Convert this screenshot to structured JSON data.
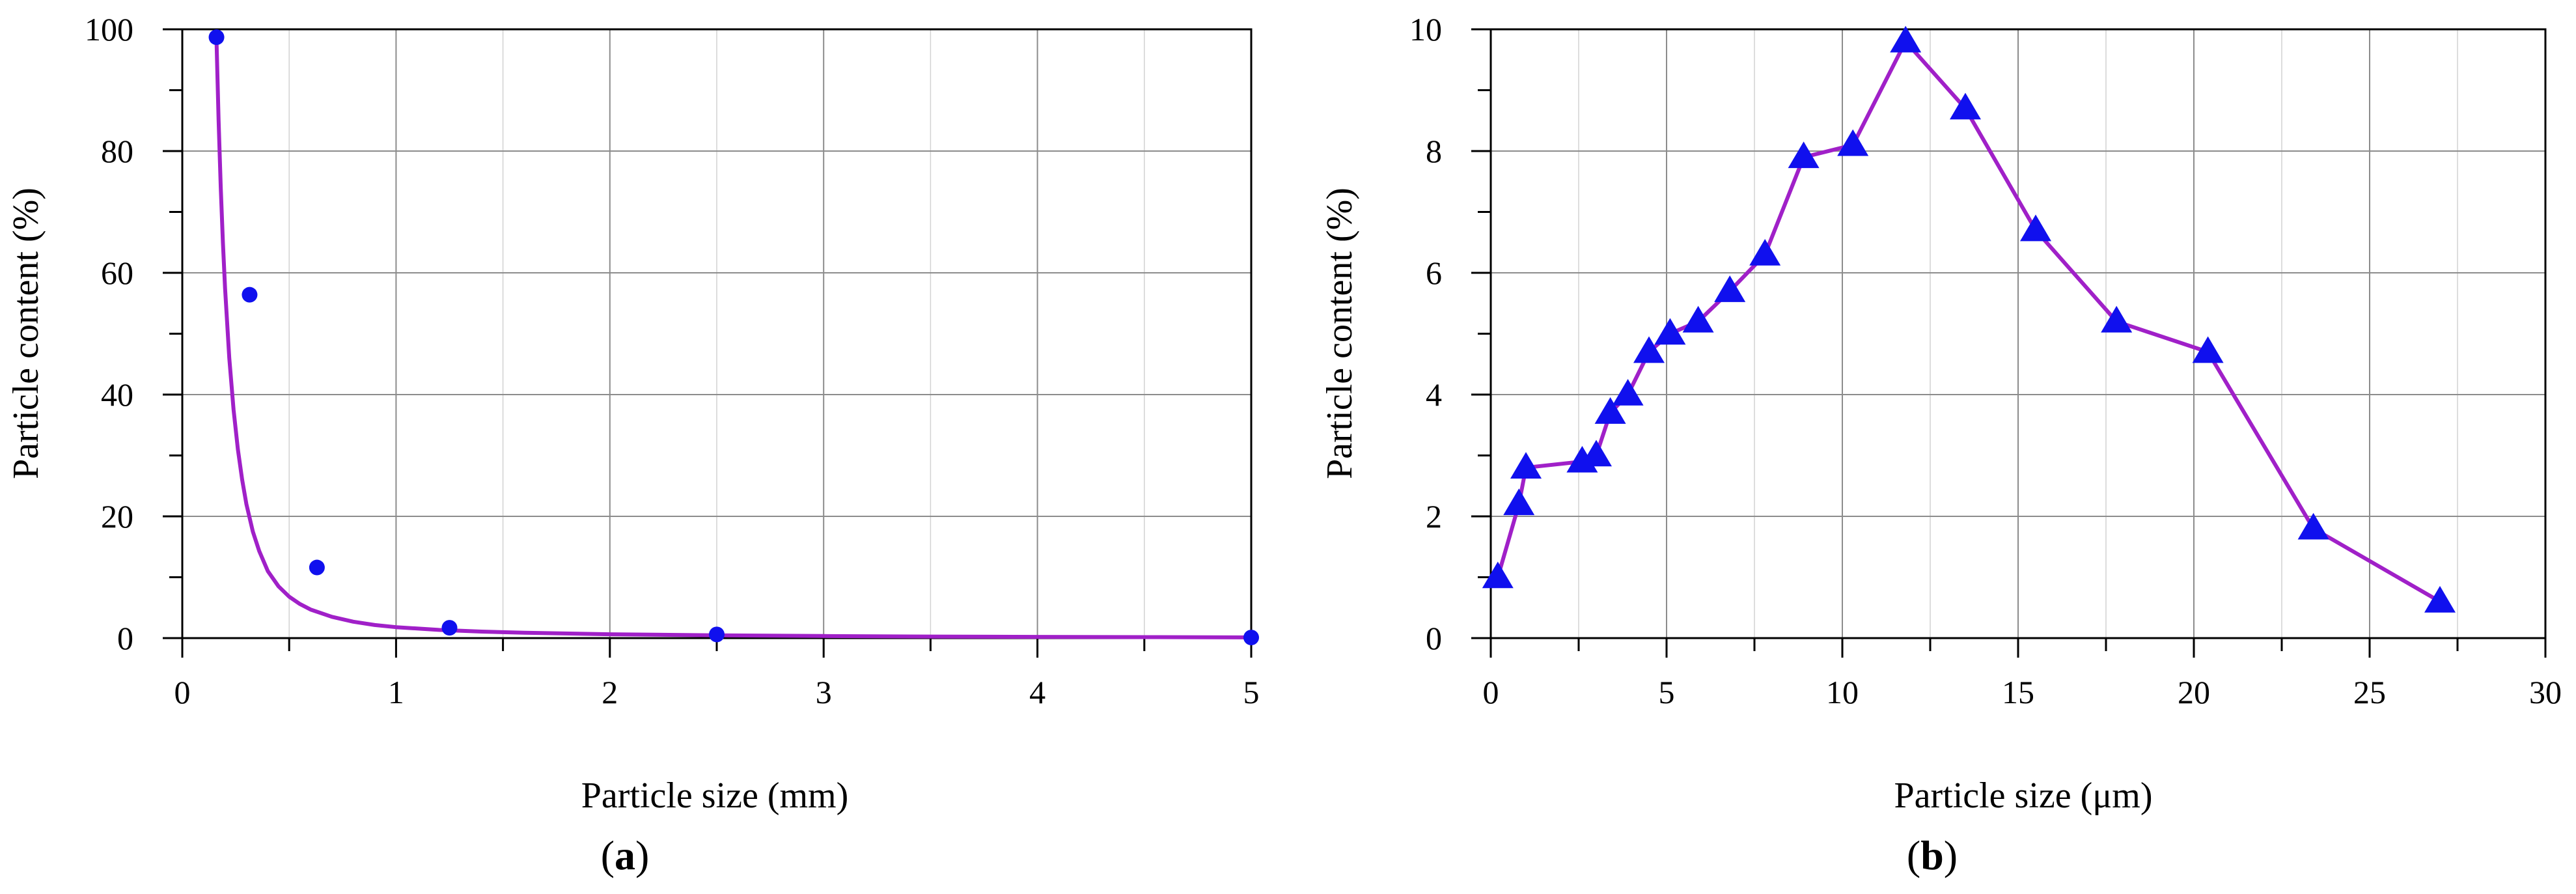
{
  "chart_data": [
    {
      "panel_label": "a",
      "type": "scatter",
      "xlabel": "Particle size (mm)",
      "ylabel": "Particle content (%)",
      "xlim": [
        0,
        5
      ],
      "ylim": [
        0,
        100
      ],
      "xticks": [
        0,
        1,
        2,
        3,
        4,
        5
      ],
      "yticks": [
        0,
        20,
        40,
        60,
        80,
        100
      ],
      "grid": true,
      "colors": {
        "marker": "#1010ee",
        "line": "#a020c8"
      },
      "series": [
        {
          "kind": "points",
          "marker": "circle",
          "x": [
            0.16,
            0.315,
            0.63,
            1.25,
            2.5,
            5.0
          ],
          "y": [
            98.7,
            56.4,
            11.6,
            1.7,
            0.6,
            0.1
          ]
        },
        {
          "kind": "fit-curve",
          "x": [
            0.16,
            0.17,
            0.18,
            0.19,
            0.2,
            0.22,
            0.24,
            0.26,
            0.28,
            0.3,
            0.33,
            0.36,
            0.4,
            0.45,
            0.5,
            0.55,
            0.6,
            0.7,
            0.8,
            0.9,
            1.0,
            1.2,
            1.4,
            1.6,
            2.0,
            2.5,
            3.0,
            3.5,
            4.0,
            4.5,
            5.0
          ],
          "y": [
            98.5,
            85.0,
            74.0,
            65.0,
            57.5,
            46.0,
            37.5,
            31.0,
            26.0,
            22.0,
            17.5,
            14.3,
            11.0,
            8.5,
            6.8,
            5.6,
            4.7,
            3.5,
            2.7,
            2.15,
            1.8,
            1.35,
            1.07,
            0.88,
            0.63,
            0.45,
            0.34,
            0.26,
            0.2,
            0.16,
            0.12
          ]
        }
      ]
    },
    {
      "panel_label": "b",
      "type": "line",
      "xlabel": "Particle size (μm)",
      "ylabel": "Particle content (%)",
      "xlim": [
        0,
        30
      ],
      "ylim": [
        0,
        10
      ],
      "xticks": [
        0,
        5,
        10,
        15,
        20,
        25,
        30
      ],
      "yticks": [
        0,
        2,
        4,
        6,
        8,
        10
      ],
      "grid": true,
      "colors": {
        "marker": "#1010ee",
        "line": "#a020c8"
      },
      "series": [
        {
          "kind": "line-with-markers",
          "marker": "triangle",
          "x": [
            0.2,
            0.8,
            1.0,
            2.6,
            3.0,
            3.4,
            3.9,
            4.5,
            5.1,
            5.9,
            6.8,
            7.8,
            8.9,
            10.3,
            11.8,
            13.5,
            15.5,
            17.8,
            20.4,
            23.4,
            27.0
          ],
          "y": [
            1.0,
            2.2,
            2.8,
            2.9,
            3.0,
            3.7,
            4.0,
            4.7,
            5.0,
            5.2,
            5.7,
            6.3,
            7.9,
            8.1,
            9.8,
            8.7,
            6.7,
            5.2,
            4.7,
            1.8,
            0.6
          ]
        }
      ]
    }
  ]
}
